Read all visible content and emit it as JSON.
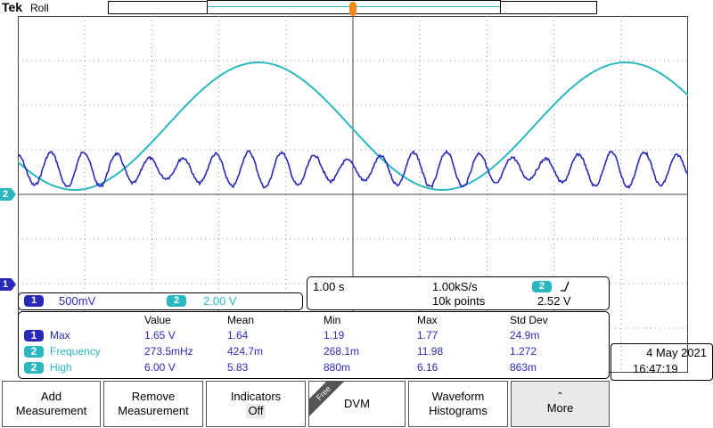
{
  "brand": "Tek",
  "mode": "Roll",
  "colors": {
    "ch1": "#2a2ab8",
    "ch2": "#2bb7c0",
    "trigger": "#f08a1c"
  },
  "channels": [
    {
      "id": "1",
      "scale": "500mV"
    },
    {
      "id": "2",
      "scale": "2.00 V"
    }
  ],
  "timebase": {
    "horizontal_scale": "1.00 s",
    "sample_rate": "1.00kS/s",
    "record_length": "10k points",
    "trigger_channel": "2",
    "trigger_slope_icon": "rising-edge-icon",
    "trigger_level": "2.52 V"
  },
  "measurements": {
    "headers": [
      "Value",
      "Mean",
      "Min",
      "Max",
      "Std Dev"
    ],
    "rows": [
      {
        "ch": "1",
        "name": "Max",
        "value": "1.65 V",
        "mean": "1.64",
        "min": "1.19",
        "max": "1.77",
        "std": "24.9m"
      },
      {
        "ch": "2",
        "name": "Frequency",
        "value": "273.5mHz",
        "mean": "424.7m",
        "min": "268.1m",
        "max": "11.98",
        "std": "1.272"
      },
      {
        "ch": "2",
        "name": "High",
        "value": "6.00 V",
        "mean": "5.83",
        "min": "880m",
        "max": "6.16",
        "std": "863m"
      }
    ]
  },
  "datetime": {
    "date": "4 May 2021",
    "time": "16:47:19"
  },
  "buttons": [
    {
      "line1": "Add",
      "line2": "Measurement"
    },
    {
      "line1": "Remove",
      "line2": "Measurement"
    },
    {
      "line1": "Indicators",
      "line2": "Off"
    },
    {
      "line1": "DVM",
      "line2": "",
      "badge": "Free"
    },
    {
      "line1": "Waveform",
      "line2": "Histograms"
    },
    {
      "line1": "More",
      "line2": "",
      "icon": "up-arrow-icon"
    }
  ]
}
